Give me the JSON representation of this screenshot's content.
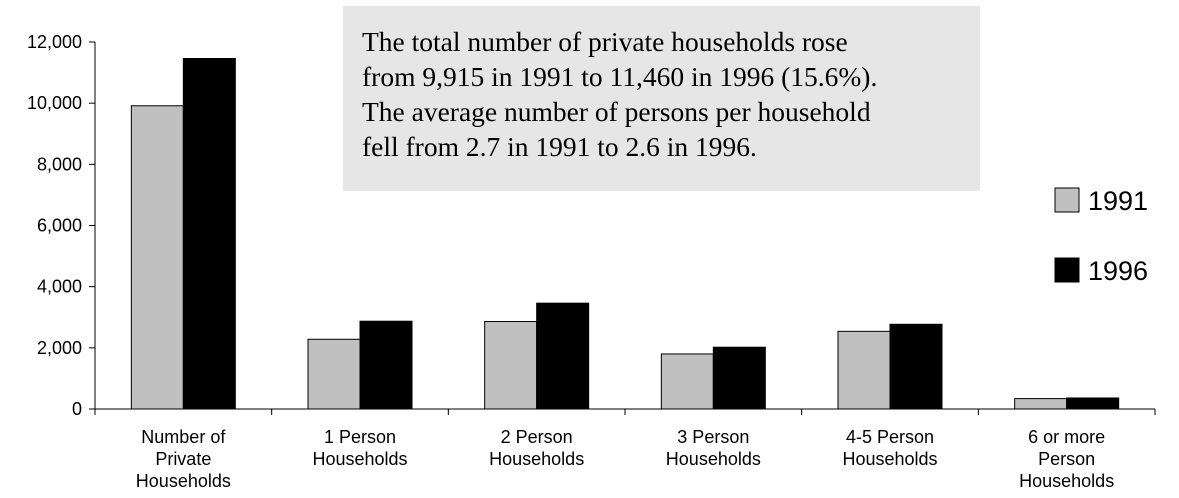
{
  "chart_data": {
    "type": "bar",
    "title": "",
    "xlabel": "",
    "ylabel": "",
    "ylim": [
      0,
      12000
    ],
    "yticks": [
      0,
      2000,
      4000,
      6000,
      8000,
      10000,
      12000
    ],
    "ytick_labels": [
      "0",
      "2,000",
      "4,000",
      "6,000",
      "8,000",
      "10,000",
      "12,000"
    ],
    "categories": [
      [
        "Number of",
        "Private",
        "Households"
      ],
      [
        "1 Person",
        "Households"
      ],
      [
        "2 Person",
        "Households"
      ],
      [
        "3 Person",
        "Households"
      ],
      [
        "4-5 Person",
        "Households"
      ],
      [
        "6 or more",
        "Person",
        "Households"
      ]
    ],
    "series": [
      {
        "name": "1991",
        "color": "#c0c0c0",
        "values": [
          9915,
          2280,
          2860,
          1800,
          2540,
          340
        ]
      },
      {
        "name": "1996",
        "color": "#000000",
        "values": [
          11460,
          2870,
          3460,
          2020,
          2770,
          360
        ]
      }
    ],
    "grid": false,
    "legend": {
      "position": "right"
    },
    "annotation": [
      "The total number of private households rose",
      "from 9,915 in 1991 to 11,460 in 1996 (15.6%).",
      "The average number of persons per household",
      "fell from 2.7 in 1991 to 2.6 in 1996."
    ]
  }
}
